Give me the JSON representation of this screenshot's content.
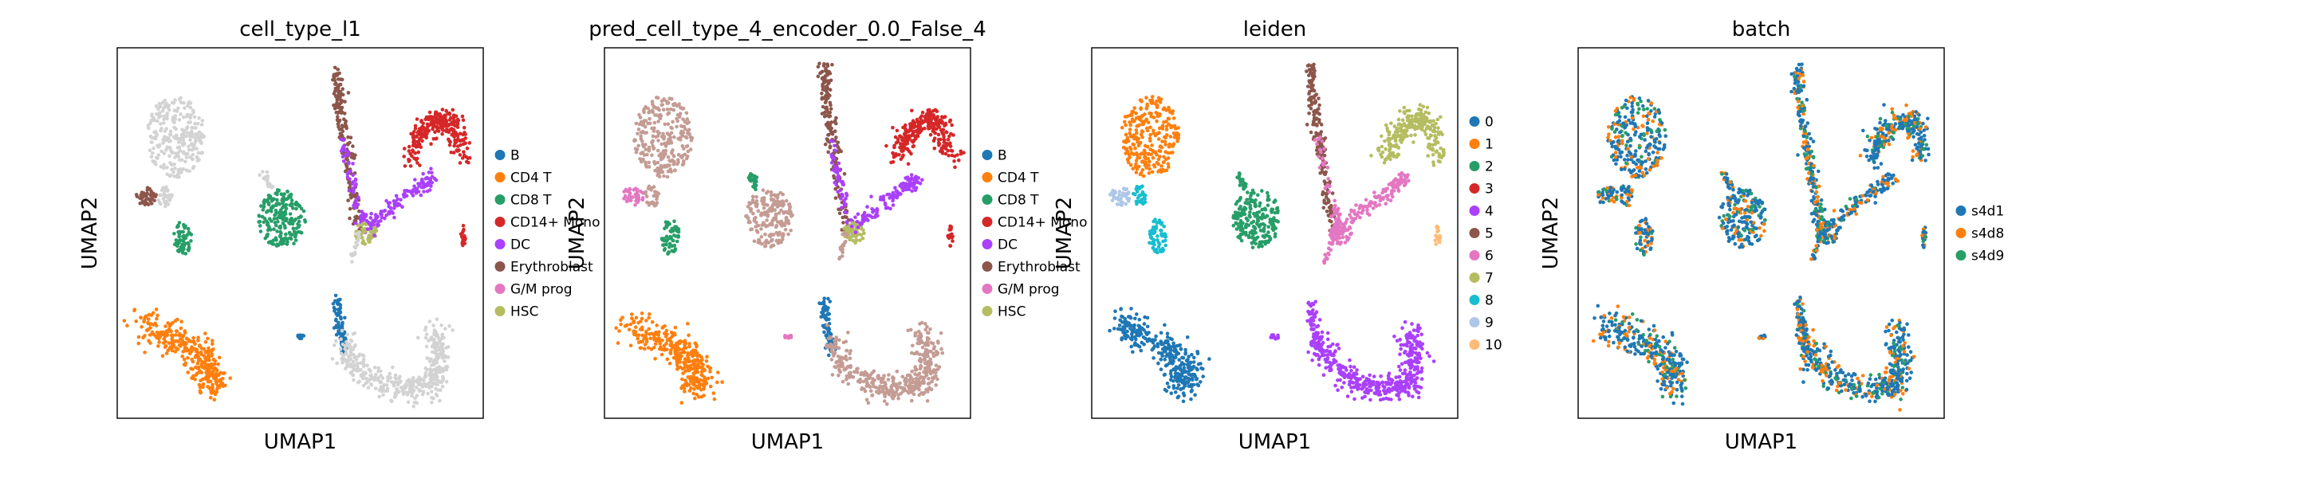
{
  "chart_data": [
    {
      "type": "scatter",
      "title": "cell_type_l1",
      "xlabel": "UMAP1",
      "ylabel": "UMAP2",
      "grid": false,
      "legend_position": "right",
      "series": [
        {
          "name": "B",
          "color": "#1f77b4"
        },
        {
          "name": "CD4 T",
          "color": "#ff7f0e"
        },
        {
          "name": "CD8 T",
          "color": "#279e68"
        },
        {
          "name": "CD14+ Mono",
          "color": "#d62728"
        },
        {
          "name": "DC",
          "color": "#aa40fc"
        },
        {
          "name": "Erythroblast",
          "color": "#8c564b"
        },
        {
          "name": "G/M prog",
          "color": "#e377c2"
        },
        {
          "name": "HSC",
          "color": "#b5bd61"
        }
      ],
      "unlabeled_color": "#d3d3d3"
    },
    {
      "type": "scatter",
      "title": "pred_cell_type_4_encoder_0.0_False_4",
      "xlabel": "UMAP1",
      "ylabel": "UMAP2",
      "grid": false,
      "legend_position": "right",
      "series": [
        {
          "name": "B",
          "color": "#1f77b4"
        },
        {
          "name": "CD4 T",
          "color": "#ff7f0e"
        },
        {
          "name": "CD8 T",
          "color": "#279e68"
        },
        {
          "name": "CD14+ Mono",
          "color": "#d62728"
        },
        {
          "name": "DC",
          "color": "#aa40fc"
        },
        {
          "name": "Erythroblast",
          "color": "#8c564b"
        },
        {
          "name": "G/M prog",
          "color": "#e377c2"
        },
        {
          "name": "HSC",
          "color": "#b5bd61"
        }
      ],
      "unlabeled_color": "#c49c94"
    },
    {
      "type": "scatter",
      "title": "leiden",
      "xlabel": "UMAP1",
      "ylabel": "UMAP2",
      "grid": false,
      "legend_position": "right",
      "series": [
        {
          "name": "0",
          "color": "#1f77b4"
        },
        {
          "name": "1",
          "color": "#ff7f0e"
        },
        {
          "name": "2",
          "color": "#279e68"
        },
        {
          "name": "3",
          "color": "#d62728"
        },
        {
          "name": "4",
          "color": "#aa40fc"
        },
        {
          "name": "5",
          "color": "#8c564b"
        },
        {
          "name": "6",
          "color": "#e377c2"
        },
        {
          "name": "7",
          "color": "#b5bd61"
        },
        {
          "name": "8",
          "color": "#17becf"
        },
        {
          "name": "9",
          "color": "#aec7e8"
        },
        {
          "name": "10",
          "color": "#ffbb78"
        }
      ]
    },
    {
      "type": "scatter",
      "title": "batch",
      "xlabel": "UMAP1",
      "ylabel": "UMAP2",
      "grid": false,
      "legend_position": "right",
      "series": [
        {
          "name": "s4d1",
          "color": "#1f77b4"
        },
        {
          "name": "s4d8",
          "color": "#ff7f0e"
        },
        {
          "name": "s4d9",
          "color": "#279e68"
        }
      ]
    }
  ]
}
